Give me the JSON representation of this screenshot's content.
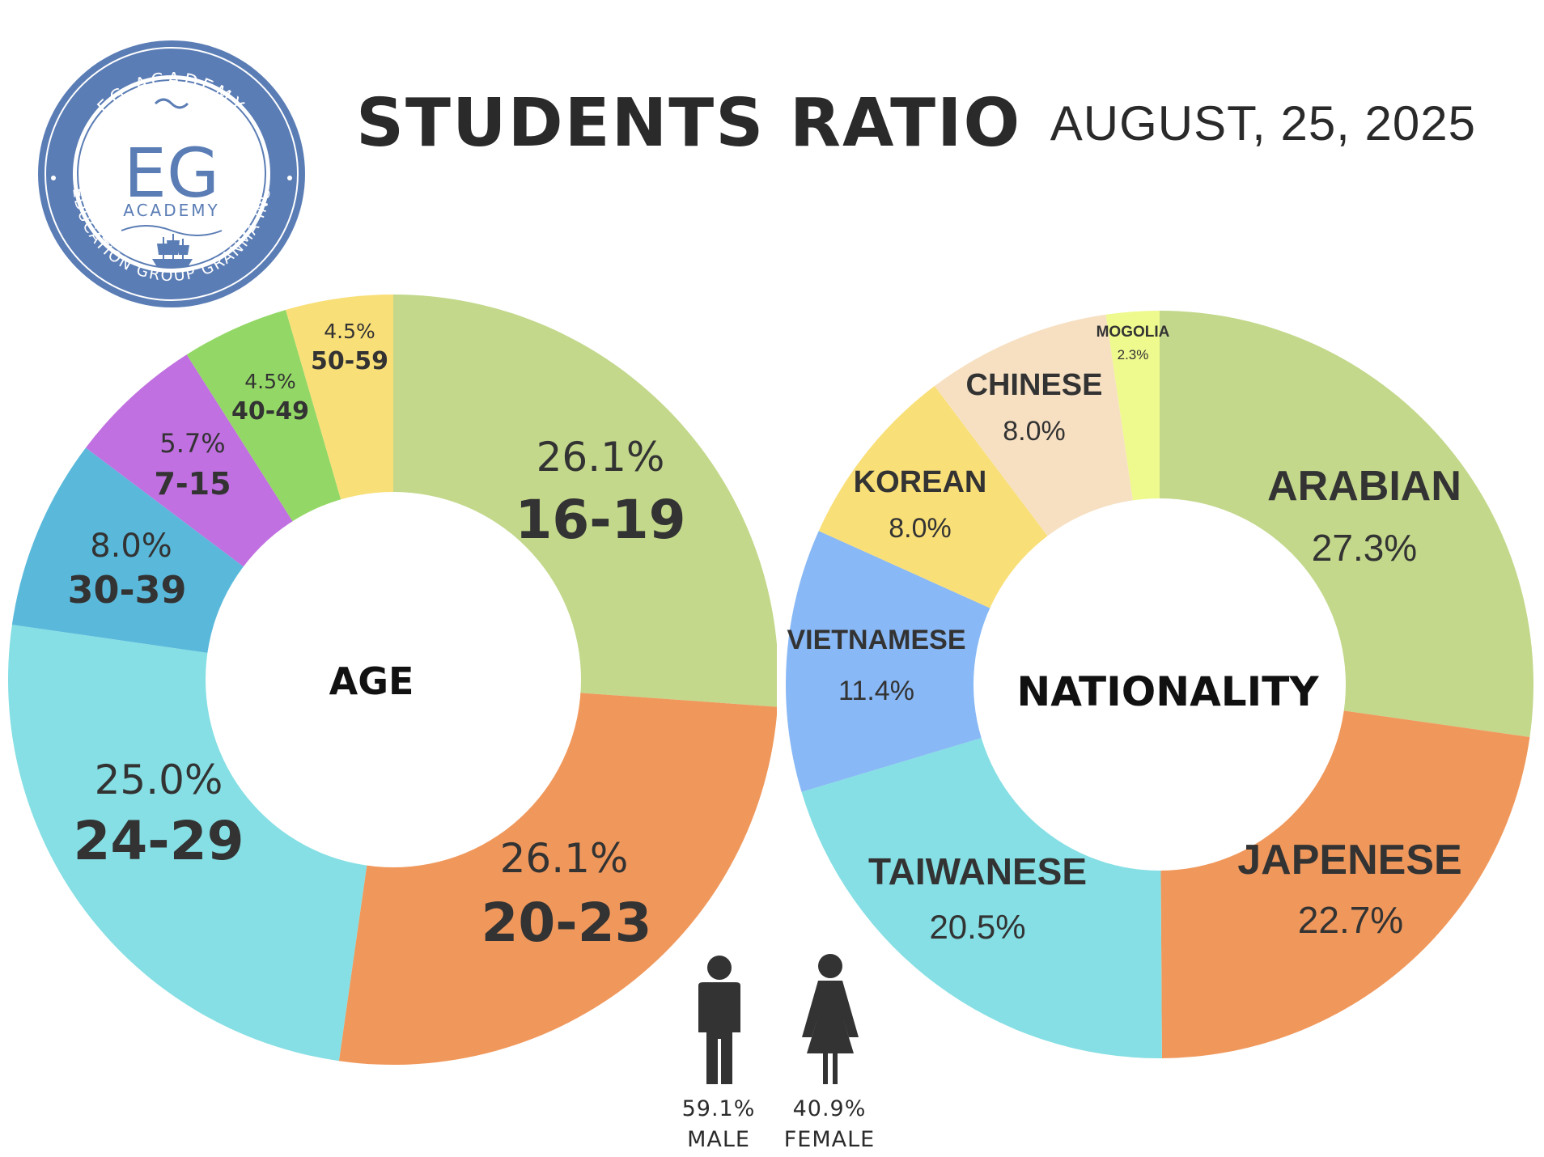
{
  "header": {
    "title": "STUDENTS RATIO",
    "date": "AUGUST, 25, 2025"
  },
  "logo": {
    "arc_top": "EG ACADEMY",
    "monogram": "EG",
    "subtitle": "ACADEMY",
    "arc_bottom": "EDUCATION GROUP GRANMA INC"
  },
  "chart_data": [
    {
      "type": "pie",
      "donut": true,
      "center_label": "AGE",
      "slices": [
        {
          "label": "16-19",
          "value": 26.1,
          "pct_text": "26.1%",
          "color": "#c3d88b"
        },
        {
          "label": "20-23",
          "value": 26.1,
          "pct_text": "26.1%",
          "color": "#f0985c"
        },
        {
          "label": "24-29",
          "value": 25.0,
          "pct_text": "25.0%",
          "color": "#85dfe4"
        },
        {
          "label": "30-39",
          "value": 8.0,
          "pct_text": "8.0%",
          "color": "#5ab9db"
        },
        {
          "label": "7-15",
          "value": 5.7,
          "pct_text": "5.7%",
          "color": "#c070e0"
        },
        {
          "label": "40-49",
          "value": 4.5,
          "pct_text": "4.5%",
          "color": "#93d866"
        },
        {
          "label": "50-59",
          "value": 4.5,
          "pct_text": "4.5%",
          "color": "#f9df78"
        }
      ]
    },
    {
      "type": "pie",
      "donut": true,
      "center_label": "NATIONALITY",
      "slices": [
        {
          "label": "ARABIAN",
          "value": 27.3,
          "pct_text": "27.3%",
          "color": "#c3d88b"
        },
        {
          "label": "JAPENESE",
          "value": 22.7,
          "pct_text": "22.7%",
          "color": "#f0985c"
        },
        {
          "label": "TAIWANESE",
          "value": 20.5,
          "pct_text": "20.5%",
          "color": "#85dfe4"
        },
        {
          "label": "VIETNAMESE",
          "value": 11.4,
          "pct_text": "11.4%",
          "color": "#88b8f5"
        },
        {
          "label": "KOREAN",
          "value": 8.0,
          "pct_text": "8.0%",
          "color": "#f9df78"
        },
        {
          "label": "CHINESE",
          "value": 8.0,
          "pct_text": "8.0%",
          "color": "#f7e0c2"
        },
        {
          "label": "MOGOLIA",
          "value": 2.3,
          "pct_text": "2.3%",
          "color": "#eef98e"
        }
      ]
    }
  ],
  "gender": {
    "male": {
      "pct": "59.1%",
      "label": "MALE"
    },
    "female": {
      "pct": "40.9%",
      "label": "FEMALE"
    }
  }
}
